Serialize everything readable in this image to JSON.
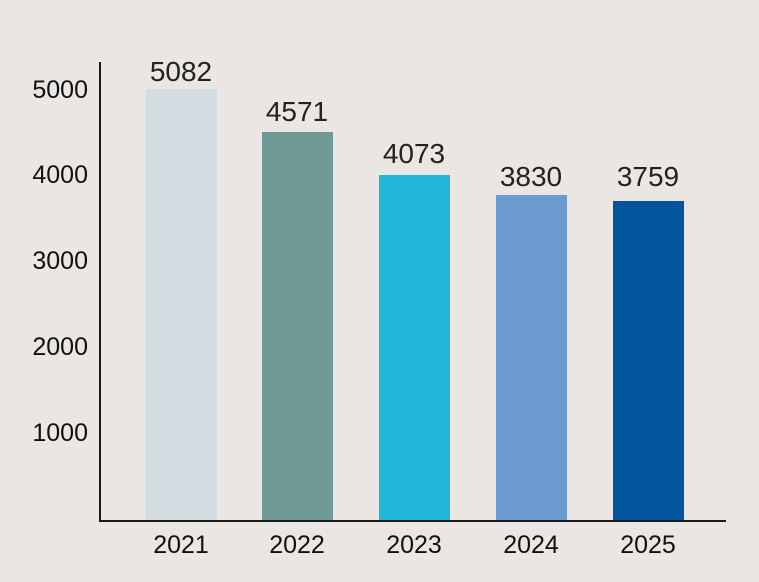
{
  "chart_data": {
    "type": "bar",
    "title": "",
    "xlabel": "",
    "ylabel": "",
    "categories": [
      "2021",
      "2022",
      "2023",
      "2024",
      "2025"
    ],
    "values": [
      5082,
      4571,
      4073,
      3830,
      3759
    ],
    "colors": [
      "#d4dde2",
      "#6f9a95",
      "#21b7d8",
      "#6b9bd0",
      "#02549c"
    ],
    "y_ticks": [
      "1000",
      "2000",
      "3000",
      "4000",
      "5000"
    ],
    "ylim": [
      0,
      5100
    ],
    "grid": false,
    "legend": null,
    "data_labels": [
      "5082",
      "4571",
      "4073",
      "3830",
      "3759"
    ]
  },
  "background": "#e9e6e3"
}
